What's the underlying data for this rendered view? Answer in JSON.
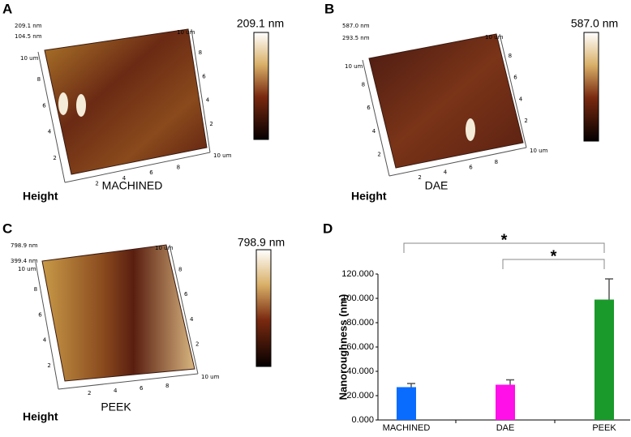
{
  "panels": [
    {
      "letter": "A",
      "scale_max": "209.1 nm",
      "z_labels": [
        "209.1 nm",
        "104.5 nm"
      ],
      "lateral_label": "10 um",
      "grid_ticks": [
        2,
        4,
        6,
        8
      ],
      "axis_label": "Height",
      "sample": "MACHINED"
    },
    {
      "letter": "B",
      "scale_max": "587.0 nm",
      "z_labels": [
        "587.0 nm",
        "293.5 nm"
      ],
      "lateral_label": "10 um",
      "grid_ticks": [
        2,
        4,
        6,
        8
      ],
      "axis_label": "Height",
      "sample": "DAE"
    },
    {
      "letter": "C",
      "scale_max": "798.9 nm",
      "z_labels": [
        "798.9 nm",
        "399.4 nm"
      ],
      "lateral_label": "10 um",
      "grid_ticks": [
        2,
        4,
        6,
        8
      ],
      "axis_label": "Height",
      "sample": "PEEK"
    }
  ],
  "chart_data": {
    "type": "bar",
    "letter": "D",
    "y_label": "Nanoroughness (nm)",
    "categories": [
      "MACHINED",
      "DAE",
      "PEEK"
    ],
    "values": [
      27000,
      29000,
      99000
    ],
    "errors": [
      3000,
      4000,
      17000
    ],
    "colors": [
      "#0a6cff",
      "#ff10e8",
      "#1a9a2a"
    ],
    "ylim": [
      0,
      120000
    ],
    "yticks": [
      {
        "value": 0,
        "label": "0.000"
      },
      {
        "value": 20000,
        "label": "20.000"
      },
      {
        "value": 40000,
        "label": "40.000"
      },
      {
        "value": 60000,
        "label": "60.000"
      },
      {
        "value": 80000,
        "label": "80.000"
      },
      {
        "value": 100000,
        "label": "100.000"
      },
      {
        "value": 120000,
        "label": "120.000"
      }
    ],
    "significance": [
      "*",
      "*"
    ]
  }
}
